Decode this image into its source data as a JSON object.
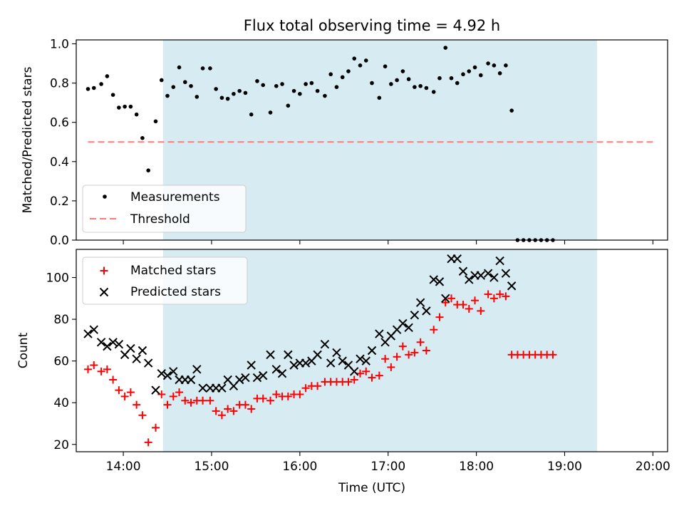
{
  "chart_data": [
    {
      "type": "scatter",
      "title": "Flux total observing time = 4.92 h",
      "xlabel": "",
      "ylabel": "Matched/Predicted stars",
      "ylim": [
        0,
        1.02
      ],
      "xlim": [
        "13:28",
        "20:10"
      ],
      "yticks": [
        "0.0",
        "0.2",
        "0.4",
        "0.6",
        "0.8",
        "1.0"
      ],
      "shaded_interval": [
        "14:27",
        "19:22"
      ],
      "shade_color": "#add8e6",
      "legend_position": "lower-left",
      "series": [
        {
          "name": "Measurements",
          "marker": "dot",
          "color": "#000000",
          "points": [
            [
              "13:36",
              0.77
            ],
            [
              "13:40",
              0.775
            ],
            [
              "13:45",
              0.795
            ],
            [
              "13:49",
              0.835
            ],
            [
              "13:53",
              0.74
            ],
            [
              "13:57",
              0.675
            ],
            [
              "14:01",
              0.68
            ],
            [
              "14:05",
              0.68
            ],
            [
              "14:09",
              0.64
            ],
            [
              "14:13",
              0.52
            ],
            [
              "14:17",
              0.355
            ],
            [
              "14:22",
              0.605
            ],
            [
              "14:26",
              0.815
            ],
            [
              "14:30",
              0.735
            ],
            [
              "14:34",
              0.78
            ],
            [
              "14:38",
              0.88
            ],
            [
              "14:42",
              0.805
            ],
            [
              "14:46",
              0.785
            ],
            [
              "14:50",
              0.73
            ],
            [
              "14:54",
              0.875
            ],
            [
              "14:59",
              0.875
            ],
            [
              "15:03",
              0.77
            ],
            [
              "15:07",
              0.725
            ],
            [
              "15:11",
              0.72
            ],
            [
              "15:15",
              0.745
            ],
            [
              "15:19",
              0.76
            ],
            [
              "15:23",
              0.75
            ],
            [
              "15:27",
              0.64
            ],
            [
              "15:31",
              0.81
            ],
            [
              "15:35",
              0.79
            ],
            [
              "15:40",
              0.65
            ],
            [
              "15:44",
              0.785
            ],
            [
              "15:48",
              0.795
            ],
            [
              "15:52",
              0.685
            ],
            [
              "15:56",
              0.76
            ],
            [
              "16:00",
              0.745
            ],
            [
              "16:04",
              0.795
            ],
            [
              "16:08",
              0.8
            ],
            [
              "16:12",
              0.76
            ],
            [
              "16:17",
              0.735
            ],
            [
              "16:21",
              0.845
            ],
            [
              "16:25",
              0.78
            ],
            [
              "16:29",
              0.83
            ],
            [
              "16:33",
              0.86
            ],
            [
              "16:37",
              0.925
            ],
            [
              "16:41",
              0.89
            ],
            [
              "16:45",
              0.915
            ],
            [
              "16:49",
              0.8
            ],
            [
              "16:54",
              0.725
            ],
            [
              "16:58",
              0.885
            ],
            [
              "17:02",
              0.795
            ],
            [
              "17:06",
              0.815
            ],
            [
              "17:10",
              0.86
            ],
            [
              "17:14",
              0.82
            ],
            [
              "17:18",
              0.78
            ],
            [
              "17:22",
              0.785
            ],
            [
              "17:26",
              0.775
            ],
            [
              "17:31",
              0.755
            ],
            [
              "17:35",
              0.825
            ],
            [
              "17:39",
              0.98
            ],
            [
              "17:43",
              0.825
            ],
            [
              "17:47",
              0.8
            ],
            [
              "17:51",
              0.845
            ],
            [
              "17:55",
              0.86
            ],
            [
              "17:59",
              0.88
            ],
            [
              "18:03",
              0.84
            ],
            [
              "18:08",
              0.9
            ],
            [
              "18:12",
              0.89
            ],
            [
              "18:16",
              0.85
            ],
            [
              "18:20",
              0.89
            ],
            [
              "18:24",
              0.66
            ],
            [
              "18:28",
              0.0
            ],
            [
              "18:32",
              0.0
            ],
            [
              "18:36",
              0.0
            ],
            [
              "18:40",
              0.0
            ],
            [
              "18:44",
              0.0
            ],
            [
              "18:48",
              0.0
            ],
            [
              "18:52",
              0.0
            ]
          ]
        },
        {
          "name": "Threshold",
          "type": "line",
          "style": "dashed",
          "color": "#ff7b7b",
          "points": [
            [
              "13:36",
              0.5
            ],
            [
              "20:00",
              0.5
            ]
          ]
        }
      ]
    },
    {
      "type": "scatter",
      "title": "",
      "xlabel": "Time (UTC)",
      "ylabel": "Count",
      "ylim": [
        16.5,
        113.5
      ],
      "xlim": [
        "13:28",
        "20:10"
      ],
      "yticks": [
        "20",
        "40",
        "60",
        "80",
        "100"
      ],
      "xticks": [
        "14:00",
        "15:00",
        "16:00",
        "17:00",
        "18:00",
        "19:00",
        "20:00"
      ],
      "shaded_interval": [
        "14:27",
        "19:22"
      ],
      "legend_position": "upper-left",
      "series": [
        {
          "name": "Matched stars",
          "marker": "plus",
          "color": "#ff0000",
          "points": [
            [
              "13:36",
              56
            ],
            [
              "13:40",
              58
            ],
            [
              "13:45",
              55
            ],
            [
              "13:49",
              56
            ],
            [
              "13:53",
              51
            ],
            [
              "13:57",
              46
            ],
            [
              "14:01",
              43
            ],
            [
              "14:05",
              45
            ],
            [
              "14:09",
              39
            ],
            [
              "14:13",
              34
            ],
            [
              "14:17",
              21
            ],
            [
              "14:22",
              28
            ],
            [
              "14:26",
              44
            ],
            [
              "14:30",
              39
            ],
            [
              "14:34",
              43
            ],
            [
              "14:38",
              45
            ],
            [
              "14:42",
              41
            ],
            [
              "14:46",
              40
            ],
            [
              "14:50",
              41
            ],
            [
              "14:54",
              41
            ],
            [
              "14:59",
              41
            ],
            [
              "15:03",
              36
            ],
            [
              "15:07",
              34
            ],
            [
              "15:11",
              37
            ],
            [
              "15:15",
              36
            ],
            [
              "15:19",
              39
            ],
            [
              "15:23",
              39
            ],
            [
              "15:27",
              37
            ],
            [
              "15:31",
              42
            ],
            [
              "15:35",
              42
            ],
            [
              "15:40",
              41
            ],
            [
              "15:44",
              44
            ],
            [
              "15:48",
              43
            ],
            [
              "15:52",
              43
            ],
            [
              "15:56",
              44
            ],
            [
              "16:00",
              44
            ],
            [
              "16:04",
              47
            ],
            [
              "16:08",
              48
            ],
            [
              "16:12",
              48
            ],
            [
              "16:17",
              50
            ],
            [
              "16:21",
              50
            ],
            [
              "16:25",
              50
            ],
            [
              "16:29",
              50
            ],
            [
              "16:33",
              50
            ],
            [
              "16:37",
              51
            ],
            [
              "16:41",
              54
            ],
            [
              "16:45",
              55
            ],
            [
              "16:49",
              52
            ],
            [
              "16:54",
              53
            ],
            [
              "16:58",
              61
            ],
            [
              "17:02",
              57
            ],
            [
              "17:06",
              62
            ],
            [
              "17:10",
              67
            ],
            [
              "17:14",
              63
            ],
            [
              "17:18",
              64
            ],
            [
              "17:22",
              69
            ],
            [
              "17:26",
              65
            ],
            [
              "17:31",
              75
            ],
            [
              "17:35",
              81
            ],
            [
              "17:39",
              88
            ],
            [
              "17:43",
              90
            ],
            [
              "17:47",
              87
            ],
            [
              "17:51",
              87
            ],
            [
              "17:55",
              85
            ],
            [
              "17:59",
              89
            ],
            [
              "18:03",
              84
            ],
            [
              "18:08",
              92
            ],
            [
              "18:12",
              90
            ],
            [
              "18:16",
              92
            ],
            [
              "18:20",
              91
            ],
            [
              "18:24",
              63
            ],
            [
              "18:28",
              63
            ],
            [
              "18:32",
              63
            ],
            [
              "18:36",
              63
            ],
            [
              "18:40",
              63
            ],
            [
              "18:44",
              63
            ],
            [
              "18:48",
              63
            ],
            [
              "18:52",
              63
            ]
          ]
        },
        {
          "name": "Predicted stars",
          "marker": "x",
          "color": "#000000",
          "points": [
            [
              "13:36",
              73
            ],
            [
              "13:40",
              75
            ],
            [
              "13:45",
              69
            ],
            [
              "13:49",
              67
            ],
            [
              "13:53",
              69
            ],
            [
              "13:57",
              68
            ],
            [
              "14:01",
              63
            ],
            [
              "14:05",
              66
            ],
            [
              "14:09",
              61
            ],
            [
              "14:13",
              65
            ],
            [
              "14:17",
              59
            ],
            [
              "14:22",
              46
            ],
            [
              "14:26",
              54
            ],
            [
              "14:30",
              53
            ],
            [
              "14:34",
              55
            ],
            [
              "14:38",
              51
            ],
            [
              "14:42",
              51
            ],
            [
              "14:46",
              51
            ],
            [
              "14:50",
              56
            ],
            [
              "14:54",
              47
            ],
            [
              "14:59",
              47
            ],
            [
              "15:03",
              47
            ],
            [
              "15:07",
              47
            ],
            [
              "15:11",
              51
            ],
            [
              "15:15",
              48
            ],
            [
              "15:19",
              51
            ],
            [
              "15:23",
              52
            ],
            [
              "15:27",
              58
            ],
            [
              "15:31",
              52
            ],
            [
              "15:35",
              53
            ],
            [
              "15:40",
              63
            ],
            [
              "15:44",
              56
            ],
            [
              "15:48",
              54
            ],
            [
              "15:52",
              63
            ],
            [
              "15:56",
              58
            ],
            [
              "16:00",
              59
            ],
            [
              "16:04",
              59
            ],
            [
              "16:08",
              60
            ],
            [
              "16:12",
              63
            ],
            [
              "16:17",
              68
            ],
            [
              "16:21",
              59
            ],
            [
              "16:25",
              64
            ],
            [
              "16:29",
              60
            ],
            [
              "16:33",
              58
            ],
            [
              "16:37",
              55
            ],
            [
              "16:41",
              61
            ],
            [
              "16:45",
              60
            ],
            [
              "16:49",
              65
            ],
            [
              "16:54",
              73
            ],
            [
              "16:58",
              69
            ],
            [
              "17:02",
              72
            ],
            [
              "17:06",
              75
            ],
            [
              "17:10",
              78
            ],
            [
              "17:14",
              76
            ],
            [
              "17:18",
              82
            ],
            [
              "17:22",
              88
            ],
            [
              "17:26",
              84
            ],
            [
              "17:31",
              99
            ],
            [
              "17:35",
              98
            ],
            [
              "17:39",
              90
            ],
            [
              "17:43",
              109
            ],
            [
              "17:47",
              109
            ],
            [
              "17:51",
              103
            ],
            [
              "17:55",
              99
            ],
            [
              "17:59",
              101
            ],
            [
              "18:03",
              101
            ],
            [
              "18:08",
              102
            ],
            [
              "18:12",
              100
            ],
            [
              "18:16",
              108
            ],
            [
              "18:20",
              102
            ],
            [
              "18:24",
              96
            ]
          ]
        }
      ]
    }
  ]
}
